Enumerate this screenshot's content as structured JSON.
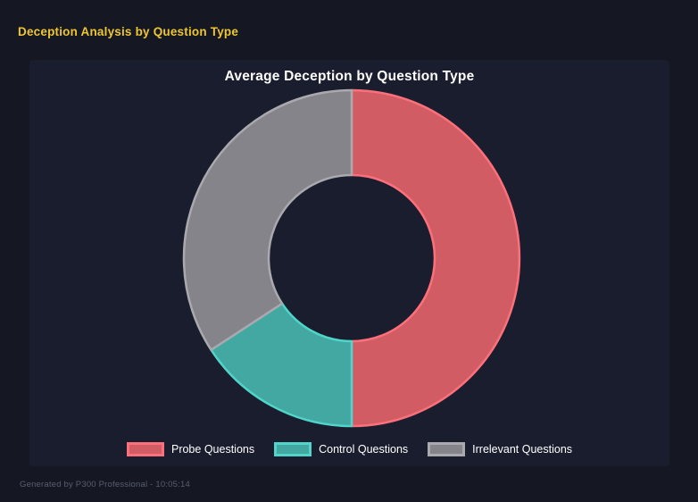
{
  "page": {
    "title": "Deception Analysis by Question Type",
    "footer": "Generated by P300 Professional - 10:05:14"
  },
  "colors": {
    "page_bg": "#151823",
    "panel_bg": "#1a1d2e",
    "title_yellow": "#eec62f",
    "text_white": "#ffffff",
    "footer_gray": "#585d6e"
  },
  "chart_data": {
    "type": "pie",
    "variant": "doughnut",
    "title": "Average Deception by Question Type",
    "categories": [
      "Probe Questions",
      "Control Questions",
      "Irrelevant Questions"
    ],
    "values_percent": [
      50,
      15.8,
      34.2
    ],
    "segment_fill_colors": [
      "#d25c63",
      "#43a8a2",
      "#84848a"
    ],
    "segment_border_colors": [
      "#fc707b",
      "#4fd5c9",
      "#a9a9ae"
    ],
    "cutout_percent": 49,
    "start_angle_deg": 0,
    "direction": "clockwise",
    "legend_position": "bottom",
    "grid": false
  }
}
